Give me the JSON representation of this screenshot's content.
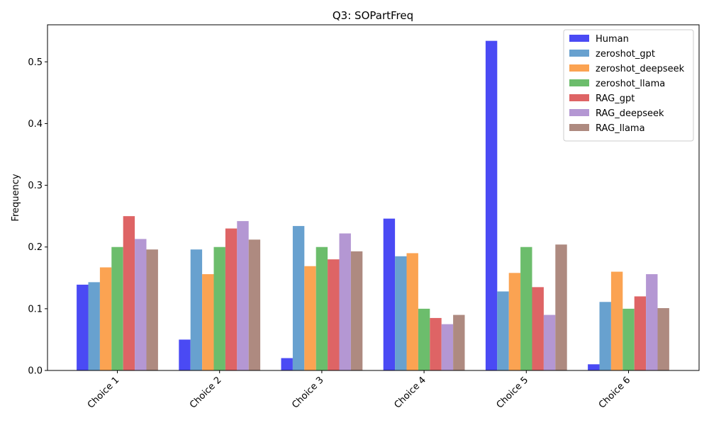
{
  "chart_data": {
    "type": "bar",
    "title": "Q3: SOPartFreq",
    "xlabel": "",
    "ylabel": "Frequency",
    "ylim": [
      0,
      0.56
    ],
    "yticks": [
      "0.0",
      "0.1",
      "0.2",
      "0.3",
      "0.4",
      "0.5"
    ],
    "categories": [
      "Choice 1",
      "Choice 2",
      "Choice 3",
      "Choice 4",
      "Choice 5",
      "Choice 6"
    ],
    "legend_position": "top-right",
    "series": [
      {
        "name": "Human",
        "color": "#4a4af4",
        "values": [
          0.139,
          0.05,
          0.02,
          0.246,
          0.534,
          0.01
        ]
      },
      {
        "name": "zeroshot_gpt",
        "color": "#68a1cf",
        "values": [
          0.143,
          0.196,
          0.234,
          0.185,
          0.128,
          0.111
        ]
      },
      {
        "name": "zeroshot_deepseek",
        "color": "#fba352",
        "values": [
          0.167,
          0.156,
          0.169,
          0.19,
          0.158,
          0.16
        ]
      },
      {
        "name": "zeroshot_llama",
        "color": "#6cbd6c",
        "values": [
          0.2,
          0.2,
          0.2,
          0.1,
          0.2,
          0.1
        ]
      },
      {
        "name": "RAG_gpt",
        "color": "#de6465",
        "values": [
          0.25,
          0.23,
          0.18,
          0.085,
          0.135,
          0.12
        ]
      },
      {
        "name": "RAG_deepseek",
        "color": "#b497d3",
        "values": [
          0.213,
          0.242,
          0.222,
          0.075,
          0.09,
          0.156
        ]
      },
      {
        "name": "RAG_llama",
        "color": "#ae8a80",
        "values": [
          0.196,
          0.212,
          0.193,
          0.09,
          0.204,
          0.101
        ]
      }
    ]
  }
}
